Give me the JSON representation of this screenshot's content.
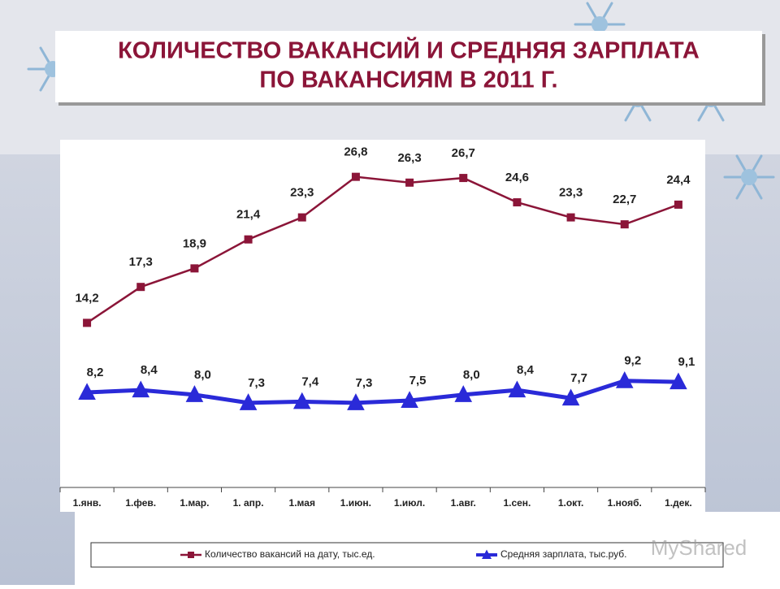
{
  "chart_data": {
    "type": "line",
    "title_lines": [
      "КОЛИЧЕСТВО ВАКАНСИЙ И СРЕДНЯЯ ЗАРПЛАТА",
      "ПО ВАКАНСИЯМ В 2011 Г."
    ],
    "categories": [
      "1.янв.",
      "1.фев.",
      "1.мар.",
      "1. апр.",
      "1.мая",
      "1.июн.",
      "1.июл.",
      "1.авг.",
      "1.сен.",
      "1.окт.",
      "1.нояб.",
      "1.дек."
    ],
    "series": [
      {
        "name": "Количество вакансий на дату, тыс.ед.",
        "color": "#8b1538",
        "marker": "square",
        "values": [
          14.2,
          17.3,
          18.9,
          21.4,
          23.3,
          26.8,
          26.3,
          26.7,
          24.6,
          23.3,
          22.7,
          24.4
        ],
        "value_labels": [
          "14,2",
          "17,3",
          "18,9",
          "21,4",
          "23,3",
          "26,8",
          "26,3",
          "26,7",
          "24,6",
          "23,3",
          "22,7",
          "24,4"
        ]
      },
      {
        "name": "Средняя зарплата, тыс.руб.",
        "color": "#2a2ad8",
        "marker": "triangle",
        "values": [
          8.2,
          8.4,
          8.0,
          7.3,
          7.4,
          7.3,
          7.5,
          8.0,
          8.4,
          7.7,
          9.2,
          9.1
        ],
        "value_labels": [
          "8,2",
          "8,4",
          "8,0",
          "7,3",
          "7,4",
          "7,3",
          "7,5",
          "8,0",
          "8,4",
          "7,7",
          "9,2",
          "9,1"
        ]
      }
    ],
    "ylim": [
      0,
      30
    ],
    "legend": "bottom",
    "watermark": "MyShared"
  }
}
